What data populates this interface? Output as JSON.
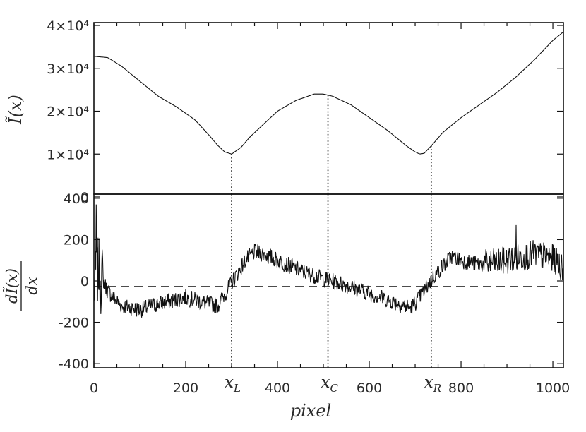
{
  "chart_data": [
    {
      "type": "line",
      "panel": "top",
      "ylabel": "Ĩ(x)",
      "xlim": [
        0,
        1023
      ],
      "ylim": [
        0,
        40000
      ],
      "yticks": [
        {
          "value": 0,
          "label": "0"
        },
        {
          "value": 10000,
          "label": "1×10⁴"
        },
        {
          "value": 20000,
          "label": "2×10⁴"
        },
        {
          "value": 30000,
          "label": "3×10⁴"
        },
        {
          "value": 40000,
          "label": "4×10⁴"
        }
      ],
      "series": [
        {
          "x": [
            0,
            30,
            60,
            100,
            140,
            180,
            220,
            250,
            270,
            285,
            300,
            320,
            340,
            370,
            400,
            440,
            480,
            500,
            520,
            560,
            600,
            640,
            680,
            700,
            710,
            720,
            740,
            760,
            800,
            840,
            880,
            920,
            960,
            1000,
            1023
          ],
          "y": [
            32800,
            32500,
            30500,
            27000,
            23500,
            21000,
            18000,
            14500,
            12000,
            10500,
            10000,
            11500,
            14000,
            17000,
            20000,
            22500,
            24000,
            24000,
            23500,
            21500,
            18500,
            15500,
            12000,
            10500,
            10000,
            10200,
            12500,
            15000,
            18500,
            21500,
            24500,
            28000,
            32000,
            36500,
            38500
          ]
        }
      ],
      "markers_x": [
        300,
        510,
        735
      ]
    },
    {
      "type": "line",
      "panel": "bottom",
      "ylabel": "dĨ(x) / dx",
      "ylabel_num": "dĨ(x)",
      "ylabel_den": "dx",
      "xlabel": "pixel",
      "xlim": [
        0,
        1023
      ],
      "ylim": [
        -420,
        420
      ],
      "yticks": [
        {
          "value": -400,
          "label": "-400"
        },
        {
          "value": -200,
          "label": "-200"
        },
        {
          "value": 0,
          "label": "0"
        },
        {
          "value": 200,
          "label": "200"
        },
        {
          "value": 400,
          "label": "400"
        }
      ],
      "xticks": [
        {
          "value": 0,
          "label": "0"
        },
        {
          "value": 200,
          "label": "200"
        },
        {
          "value": 400,
          "label": "400"
        },
        {
          "value": 600,
          "label": "600"
        },
        {
          "value": 800,
          "label": "800"
        },
        {
          "value": 1000,
          "label": "1000"
        }
      ],
      "series": [
        {
          "x": [
            0,
            10,
            30,
            60,
            100,
            140,
            200,
            250,
            270,
            300,
            330,
            350,
            370,
            400,
            450,
            500,
            550,
            600,
            650,
            690,
            710,
            740,
            780,
            800,
            840,
            880,
            920,
            960,
            1000,
            1023
          ],
          "y": [
            -40,
            60,
            -50,
            -120,
            -140,
            -110,
            -80,
            -110,
            -120,
            -10,
            100,
            140,
            130,
            100,
            50,
            10,
            -20,
            -60,
            -100,
            -130,
            -80,
            20,
            120,
            100,
            80,
            90,
            110,
            130,
            110,
            60
          ]
        }
      ],
      "zero_line": "dashed",
      "markers": [
        {
          "x": 300,
          "label": "x",
          "sub": "L"
        },
        {
          "x": 510,
          "label": "x",
          "sub": "C"
        },
        {
          "x": 735,
          "label": "x",
          "sub": "R"
        }
      ]
    }
  ]
}
